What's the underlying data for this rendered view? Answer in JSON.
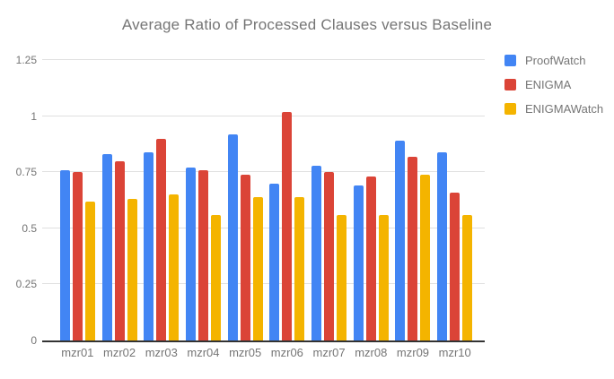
{
  "chart_data": {
    "type": "bar",
    "title": "Average Ratio of Processed Clauses versus Baseline",
    "xlabel": "",
    "ylabel": "",
    "categories": [
      "mzr01",
      "mzr02",
      "mzr03",
      "mzr04",
      "mzr05",
      "mzr06",
      "mzr07",
      "mzr08",
      "mzr09",
      "mzr10"
    ],
    "series": [
      {
        "name": "ProofWatch",
        "color": "#4285F4",
        "values": [
          0.76,
          0.83,
          0.84,
          0.77,
          0.92,
          0.7,
          0.78,
          0.69,
          0.89,
          0.84
        ]
      },
      {
        "name": "ENIGMA",
        "color": "#DB4437",
        "values": [
          0.75,
          0.8,
          0.9,
          0.76,
          0.74,
          1.02,
          0.75,
          0.73,
          0.82,
          0.66
        ]
      },
      {
        "name": "ENIGMAWatch",
        "color": "#F4B400",
        "values": [
          0.62,
          0.63,
          0.65,
          0.56,
          0.64,
          0.64,
          0.56,
          0.56,
          0.74,
          0.56
        ]
      }
    ],
    "ylim": [
      0,
      1.25
    ],
    "yticks": [
      0,
      0.25,
      0.5,
      0.75,
      1,
      1.25
    ],
    "ytick_labels": [
      "0",
      "0.25",
      "0.5",
      "0.75",
      "1",
      "1.25"
    ],
    "grid": true,
    "legend_position": "top-right"
  },
  "colors": {
    "background": "#ffffff",
    "title_text": "#757575",
    "axis_text": "#757575",
    "gridline": "#e0e0e0",
    "baseline": "#333333"
  }
}
